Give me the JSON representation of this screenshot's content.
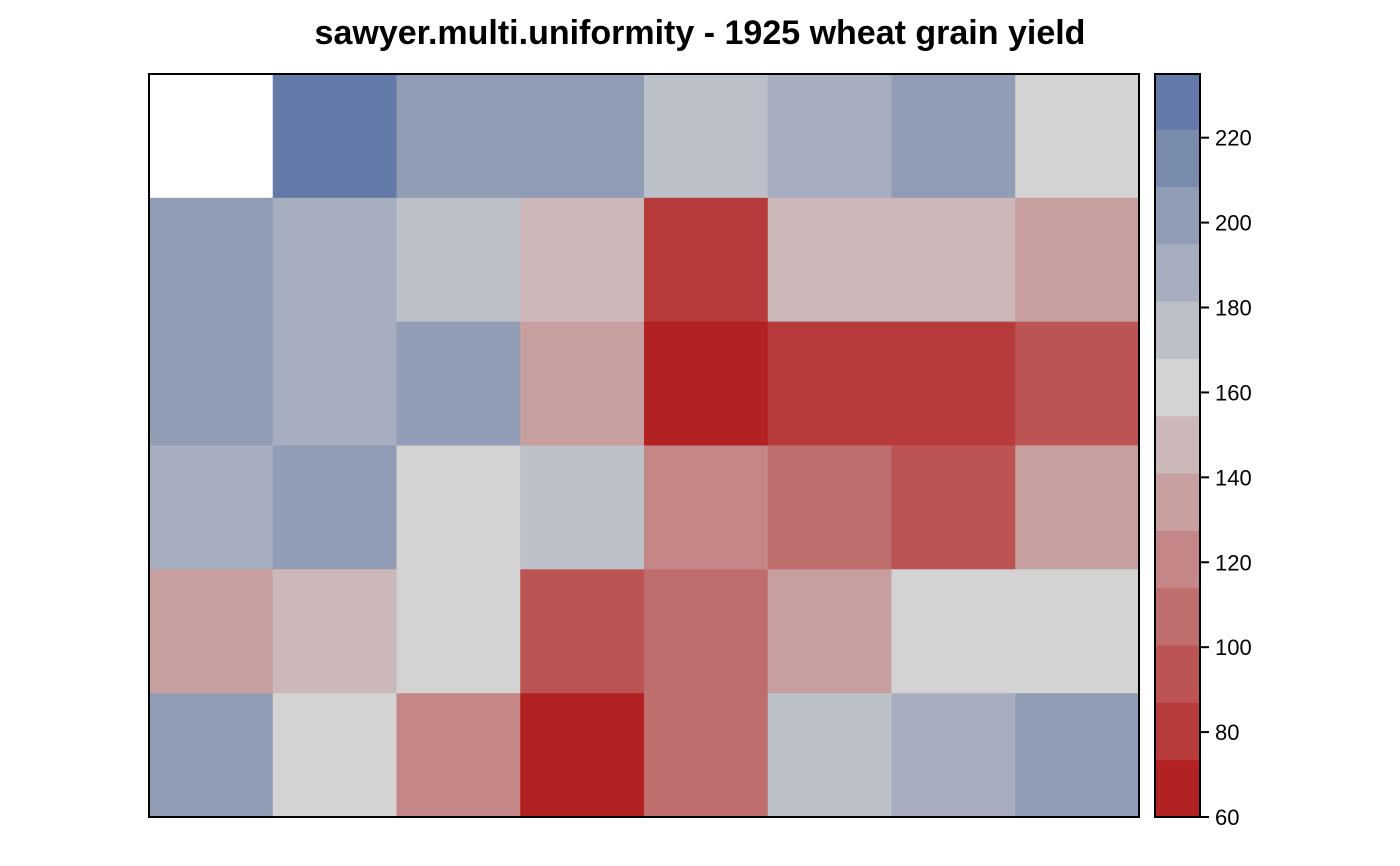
{
  "chart_data": {
    "type": "heatmap",
    "title": "sawyer.multi.uniformity - 1925 wheat grain yield",
    "rows": 6,
    "cols": 8,
    "values": [
      [
        null,
        225,
        205,
        205,
        175,
        185,
        205,
        165
      ],
      [
        205,
        185,
        175,
        145,
        85,
        145,
        145,
        135
      ],
      [
        205,
        185,
        205,
        135,
        65,
        85,
        85,
        95
      ],
      [
        185,
        205,
        165,
        175,
        115,
        105,
        95,
        135
      ],
      [
        135,
        145,
        165,
        95,
        105,
        135,
        165,
        165
      ],
      [
        205,
        165,
        115,
        65,
        105,
        175,
        185,
        205
      ]
    ],
    "colorbar": {
      "min": 60,
      "max": 235,
      "ticks": [
        "60",
        "80",
        "100",
        "120",
        "140",
        "160",
        "180",
        "200",
        "220"
      ],
      "tick_values": [
        60,
        80,
        100,
        120,
        140,
        160,
        180,
        200,
        220
      ],
      "breaks": [
        60,
        73.5,
        87,
        100.5,
        114,
        127.5,
        141,
        154.5,
        168,
        181.5,
        195,
        208.5,
        222,
        235
      ],
      "colors": [
        "#b22222",
        "#b73b3b",
        "#bc5454",
        "#c06d6d",
        "#c48686",
        "#c89f9f",
        "#ccb8b8",
        "#d3d3d3",
        "#bcc0c9",
        "#a6aebf",
        "#909db5",
        "#798bab",
        "#6379a8"
      ]
    },
    "axes_labels_shown": false,
    "legend_placement": "right"
  }
}
